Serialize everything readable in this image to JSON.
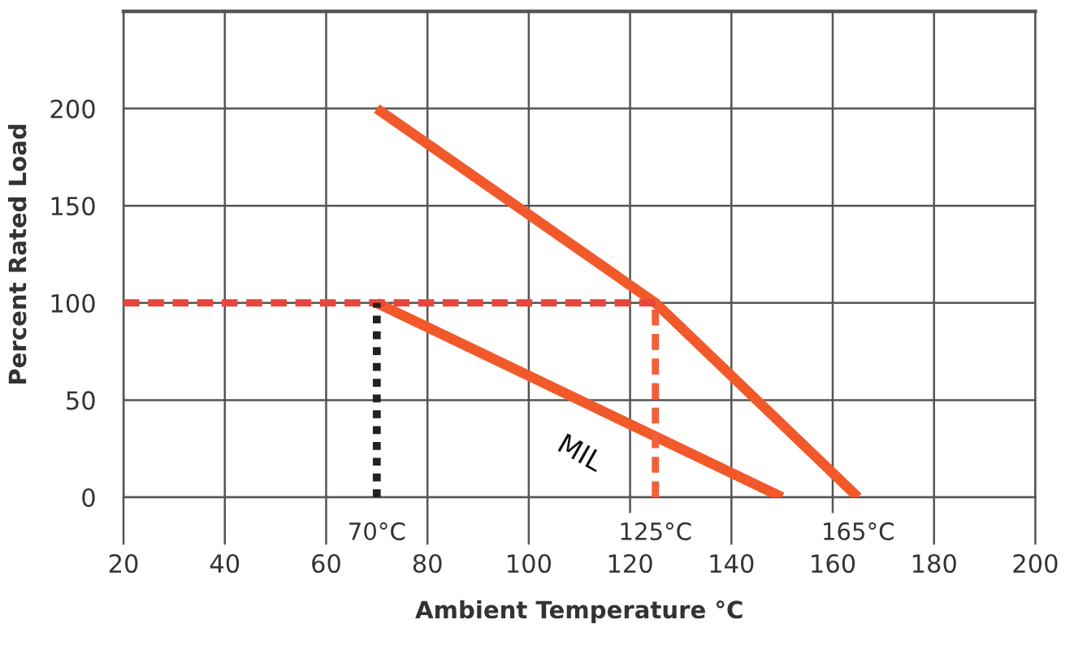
{
  "chart_data": {
    "type": "line",
    "xlabel": "Ambient Temperature °C",
    "ylabel": "Percent Rated Load",
    "xlim": [
      20,
      200
    ],
    "ylim": [
      0,
      250
    ],
    "xticks": [
      20,
      40,
      60,
      80,
      100,
      120,
      140,
      160,
      180,
      200
    ],
    "yticks": [
      0,
      50,
      100,
      150,
      200
    ],
    "grid": true,
    "series": [
      {
        "color": "#f2592a",
        "x": [
          70,
          125,
          165
        ],
        "values": [
          200,
          100,
          0
        ]
      },
      {
        "name": "MIL",
        "color": "#f2592a",
        "x": [
          70,
          150
        ],
        "values": [
          100,
          0
        ]
      },
      {
        "color": "#e8453c",
        "x": [
          20,
          125
        ],
        "values": [
          100,
          100
        ],
        "line_style": "dashed"
      },
      {
        "color": "#f0603a",
        "x": [
          125,
          125
        ],
        "values": [
          0,
          100
        ],
        "line_style": "dashed"
      },
      {
        "color": "#222222",
        "x": [
          70,
          70
        ],
        "values": [
          0,
          100
        ],
        "line_style": "dotted"
      }
    ],
    "annotations": [
      {
        "text": "70°C",
        "x": 70,
        "y": 0
      },
      {
        "text": "125°C",
        "x": 125,
        "y": 0
      },
      {
        "text": "165°C",
        "x": 165,
        "y": 0
      }
    ]
  }
}
